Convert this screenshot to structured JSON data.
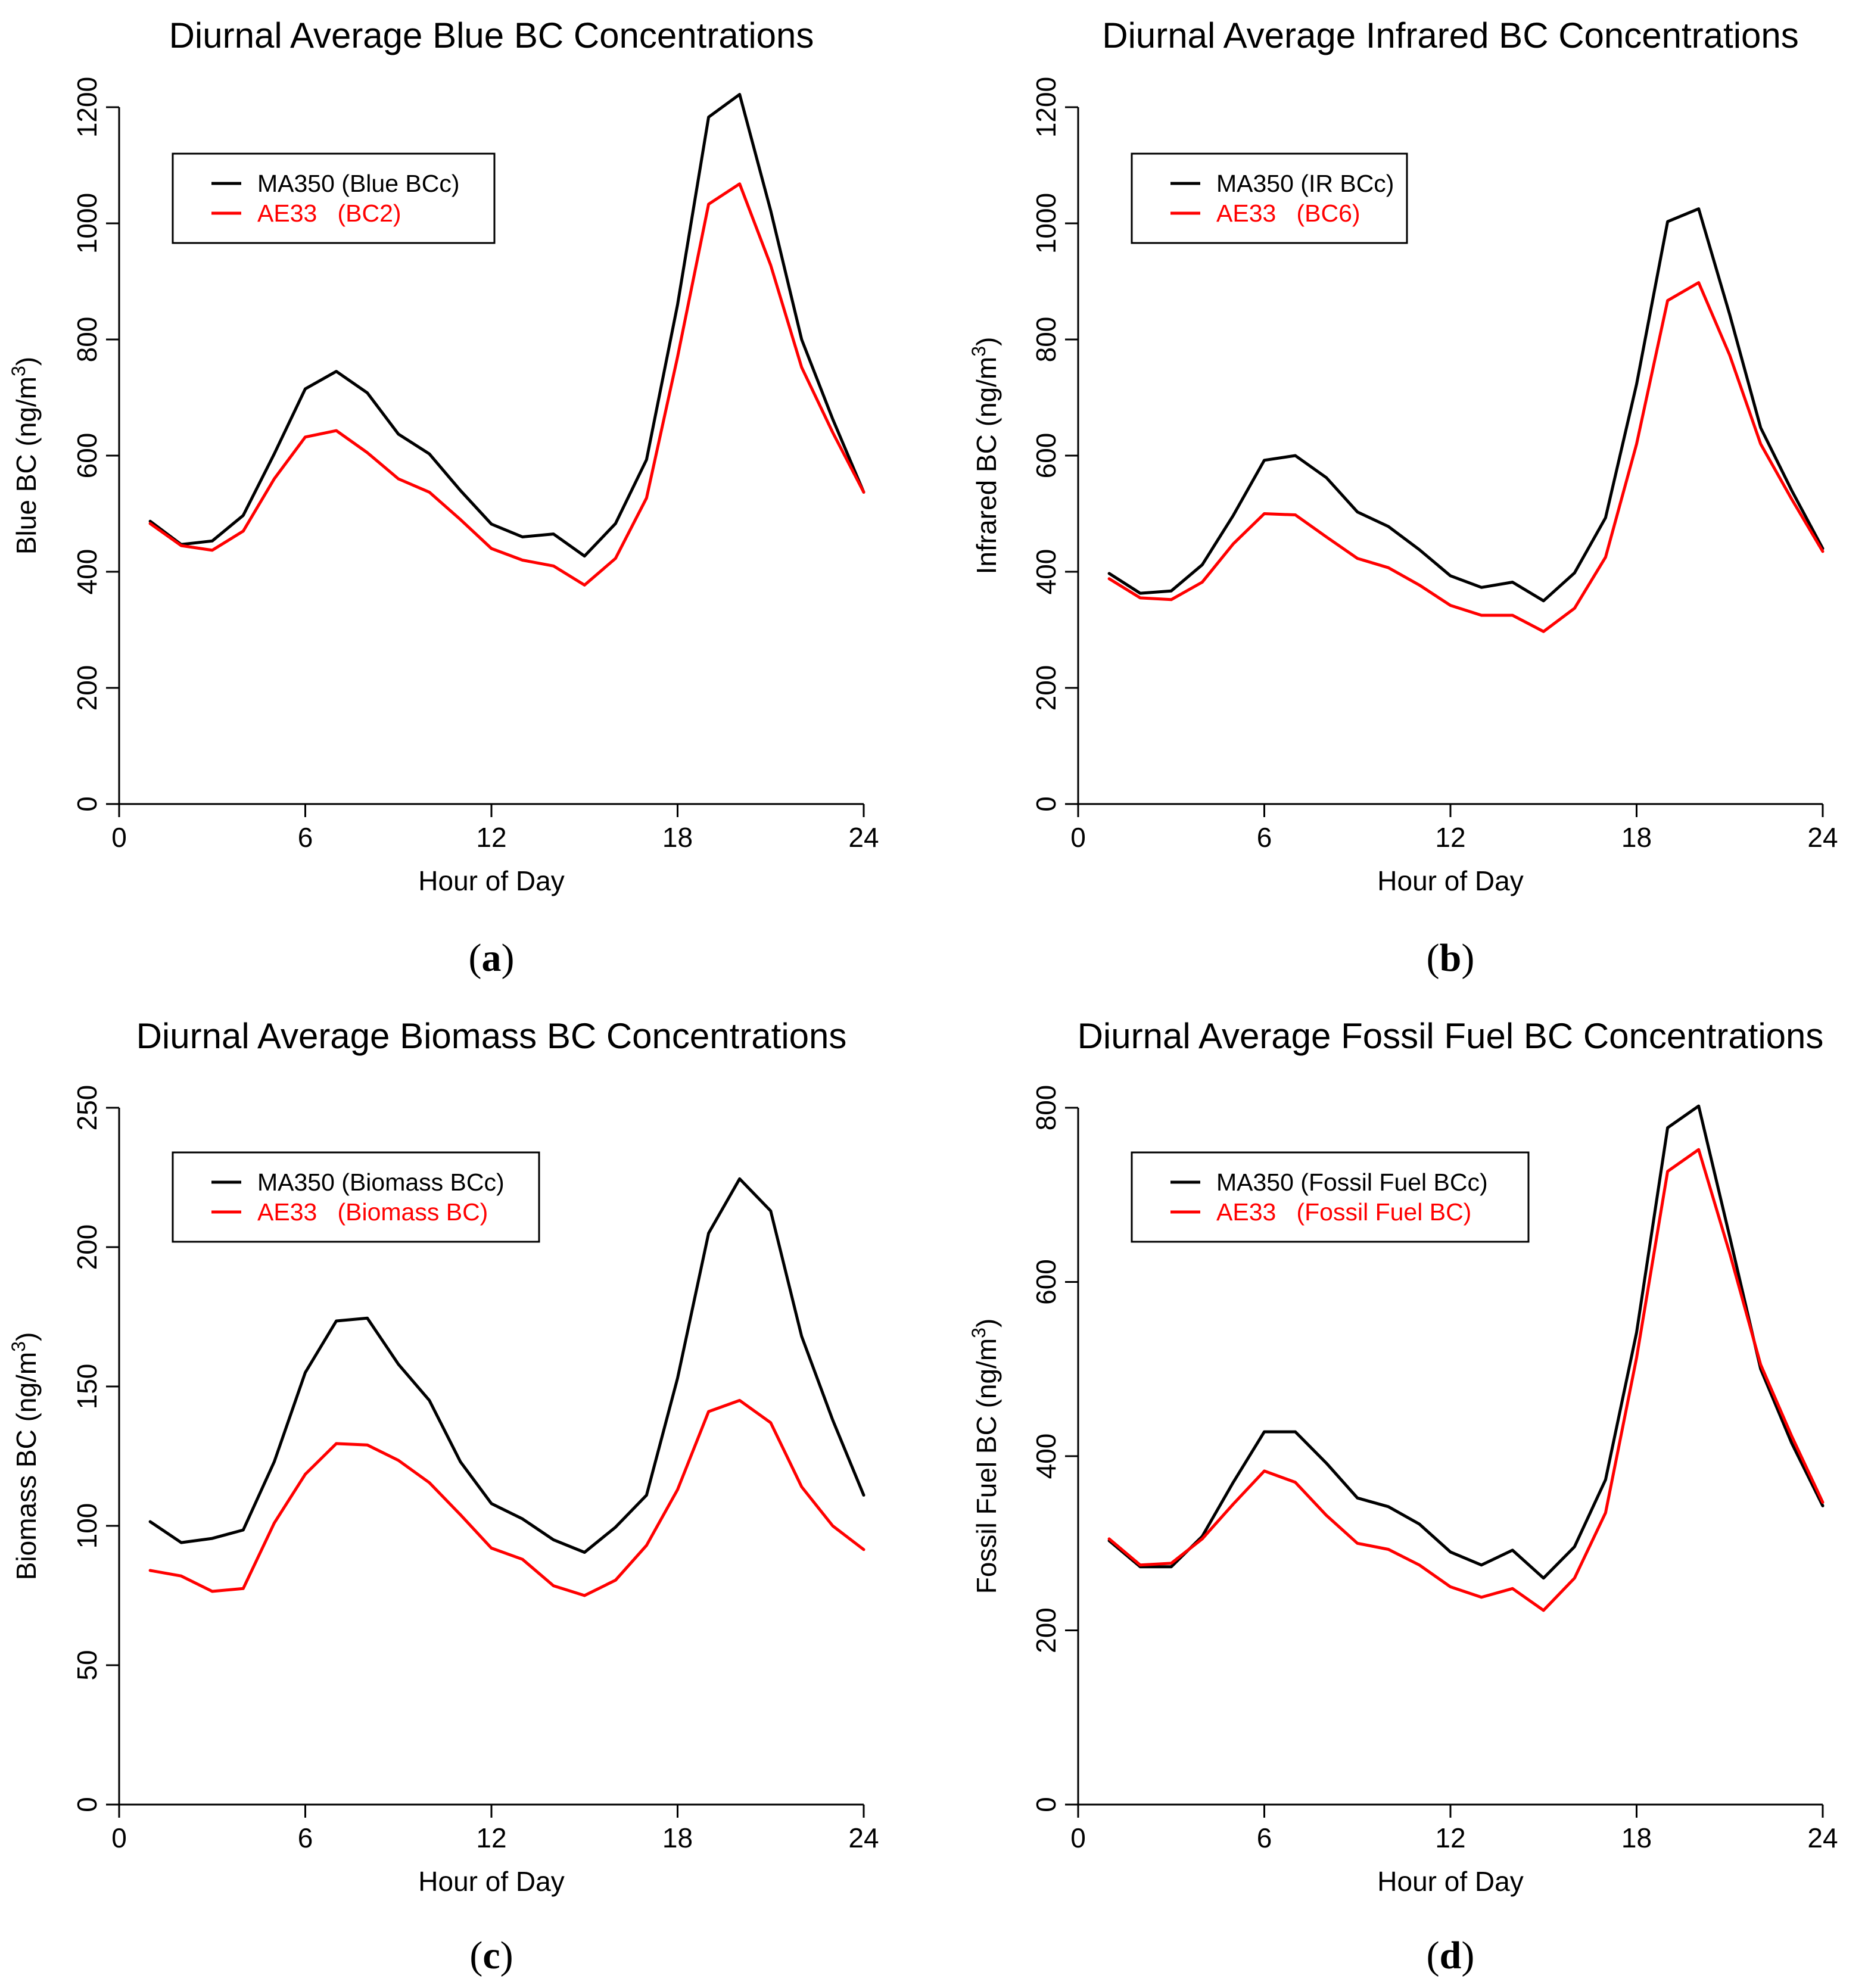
{
  "chart_data": [
    {
      "type": "line",
      "panel_label": "a",
      "title": "Diurnal Average Blue BC Concentrations",
      "xlabel": "Hour of Day",
      "ylabel": "Blue BC (ng/m",
      "ylabel_sup": "3",
      "ylabel_close": ")",
      "xlim": [
        0,
        24
      ],
      "ylim": [
        0,
        1200
      ],
      "xticks": [
        0,
        6,
        12,
        18,
        24
      ],
      "yticks": [
        0,
        200,
        400,
        600,
        800,
        1000,
        1200
      ],
      "x": [
        1,
        2,
        3,
        4,
        5,
        6,
        7,
        8,
        9,
        10,
        11,
        12,
        13,
        14,
        15,
        16,
        17,
        18,
        19,
        20,
        21,
        22,
        23,
        24
      ],
      "legend_position": "top-left",
      "series": [
        {
          "name": "MA350 (Blue BCc)",
          "color": "#000000",
          "values": [
            487,
            447,
            453,
            497,
            603,
            715,
            745,
            708,
            637,
            603,
            540,
            482,
            460,
            465,
            427,
            483,
            593,
            860,
            1183,
            1222,
            1022,
            800,
            663,
            537
          ]
        },
        {
          "name": "AE33   (BC2)",
          "color": "#ff0000",
          "values": [
            483,
            445,
            437,
            470,
            560,
            632,
            643,
            605,
            560,
            537,
            490,
            440,
            420,
            410,
            377,
            423,
            527,
            770,
            1033,
            1068,
            928,
            752,
            640,
            537
          ]
        }
      ]
    },
    {
      "type": "line",
      "panel_label": "b",
      "title": "Diurnal Average Infrared BC Concentrations",
      "xlabel": "Hour of Day",
      "ylabel": "Infrared BC (ng/m",
      "ylabel_sup": "3",
      "ylabel_close": ")",
      "xlim": [
        0,
        24
      ],
      "ylim": [
        0,
        1200
      ],
      "xticks": [
        0,
        6,
        12,
        18,
        24
      ],
      "yticks": [
        0,
        200,
        400,
        600,
        800,
        1000,
        1200
      ],
      "x": [
        1,
        2,
        3,
        4,
        5,
        6,
        7,
        8,
        9,
        10,
        11,
        12,
        13,
        14,
        15,
        16,
        17,
        18,
        19,
        20,
        21,
        22,
        23,
        24
      ],
      "legend_position": "top-left",
      "series": [
        {
          "name": "MA350 (IR BCc)",
          "color": "#000000",
          "values": [
            397,
            363,
            367,
            412,
            497,
            592,
            600,
            562,
            503,
            478,
            438,
            393,
            373,
            382,
            350,
            398,
            493,
            723,
            1003,
            1025,
            843,
            648,
            540,
            440
          ]
        },
        {
          "name": "AE33   (BC6)",
          "color": "#ff0000",
          "values": [
            388,
            355,
            352,
            382,
            448,
            500,
            498,
            460,
            423,
            407,
            377,
            342,
            325,
            325,
            297,
            337,
            425,
            620,
            867,
            898,
            773,
            620,
            525,
            435
          ]
        }
      ]
    },
    {
      "type": "line",
      "panel_label": "c",
      "title": "Diurnal Average Biomass BC Concentrations",
      "xlabel": "Hour of Day",
      "ylabel": "Biomass BC (ng/m",
      "ylabel_sup": "3",
      "ylabel_close": ")",
      "xlim": [
        0,
        24
      ],
      "ylim": [
        0,
        250
      ],
      "xticks": [
        0,
        6,
        12,
        18,
        24
      ],
      "yticks": [
        0,
        50,
        100,
        150,
        200,
        250
      ],
      "x": [
        1,
        2,
        3,
        4,
        5,
        6,
        7,
        8,
        9,
        10,
        11,
        12,
        13,
        14,
        15,
        16,
        17,
        18,
        19,
        20,
        21,
        22,
        23,
        24
      ],
      "legend_position": "top-left",
      "series": [
        {
          "name": "MA350 (Biomass BCc)",
          "color": "#000000",
          "values": [
            101.5,
            94,
            95.5,
            98.5,
            123,
            155,
            173.5,
            174.5,
            158,
            145,
            123,
            108,
            102.5,
            95,
            90.5,
            99.5,
            111,
            153,
            205,
            224.5,
            213,
            168,
            138,
            111
          ]
        },
        {
          "name": "AE33   (Biomass BC)",
          "color": "#ff0000",
          "values": [
            84,
            82,
            76.5,
            77.5,
            101,
            118.5,
            129.5,
            129,
            123.5,
            115.5,
            104,
            92,
            88,
            78.5,
            75,
            80.5,
            93,
            113,
            141,
            145,
            137,
            114,
            100,
            91.5
          ]
        }
      ]
    },
    {
      "type": "line",
      "panel_label": "d",
      "title": "Diurnal Average Fossil Fuel BC Concentrations",
      "xlabel": "Hour of Day",
      "ylabel": "Fossil Fuel BC (ng/m",
      "ylabel_sup": "3",
      "ylabel_close": ")",
      "xlim": [
        0,
        24
      ],
      "ylim": [
        0,
        800
      ],
      "xticks": [
        0,
        6,
        12,
        18,
        24
      ],
      "yticks": [
        0,
        200,
        400,
        600,
        800
      ],
      "x": [
        1,
        2,
        3,
        4,
        5,
        6,
        7,
        8,
        9,
        10,
        11,
        12,
        13,
        14,
        15,
        16,
        17,
        18,
        19,
        20,
        21,
        22,
        23,
        24
      ],
      "legend_position": "top-left",
      "series": [
        {
          "name": "MA350 (Fossil Fuel BCc)",
          "color": "#000000",
          "values": [
            303,
            273,
            273,
            308,
            370,
            428,
            428,
            392,
            352,
            342,
            322,
            290,
            275,
            292,
            260,
            296,
            373,
            542,
            777,
            802,
            652,
            500,
            415,
            343
          ]
        },
        {
          "name": "AE33   (Fossil Fuel BC)",
          "color": "#ff0000",
          "values": [
            305,
            275,
            277,
            305,
            345,
            383,
            370,
            332,
            300,
            293,
            275,
            250,
            238,
            248,
            223,
            260,
            335,
            513,
            727,
            752,
            633,
            505,
            423,
            347
          ]
        }
      ]
    }
  ]
}
